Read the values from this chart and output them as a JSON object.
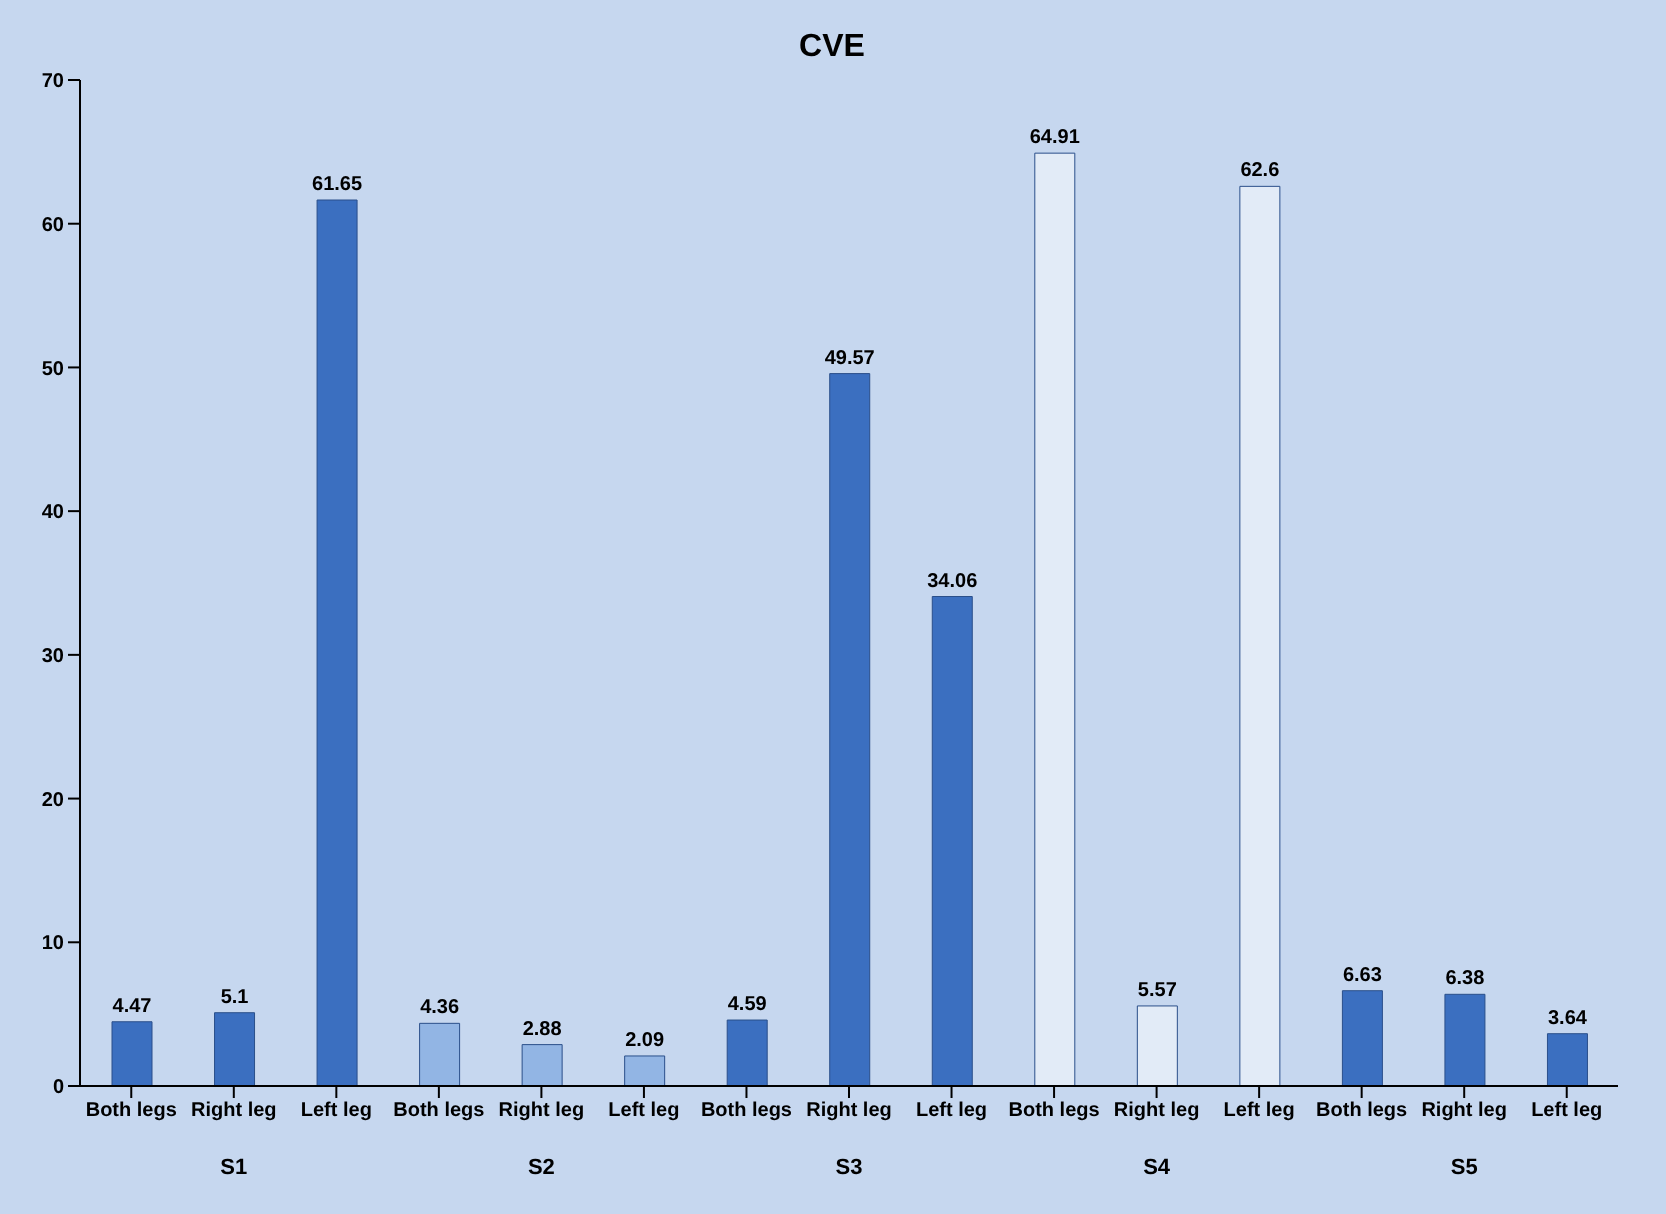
{
  "chart_data": {
    "type": "bar",
    "title": "CVE",
    "categories": [
      "Both legs",
      "Right leg",
      "Left leg",
      "Both legs",
      "Right leg",
      "Left leg",
      "Both legs",
      "Right leg",
      "Left leg",
      "Both legs",
      "Right leg",
      "Left leg",
      "Both legs",
      "Right leg",
      "Left leg"
    ],
    "values": [
      4.47,
      5.1,
      61.65,
      4.36,
      2.88,
      2.09,
      4.59,
      49.57,
      34.06,
      64.91,
      5.57,
      62.6,
      6.63,
      6.38,
      3.64
    ],
    "colors": [
      "#3b6fc0",
      "#3b6fc0",
      "#3b6fc0",
      "#92b5e4",
      "#92b5e4",
      "#92b5e4",
      "#3b6fc0",
      "#3b6fc0",
      "#3b6fc0",
      "#e2ebf7",
      "#e2ebf7",
      "#e2ebf7",
      "#3b6fc0",
      "#3b6fc0",
      "#3b6fc0"
    ],
    "annotations": [
      "S1",
      "S2",
      "S3",
      "S4",
      "S5"
    ],
    "ylim": [
      0,
      70
    ],
    "yticks": [
      0,
      10,
      20,
      30,
      40,
      50,
      60,
      70
    ],
    "data_labels": true,
    "grid": false
  }
}
